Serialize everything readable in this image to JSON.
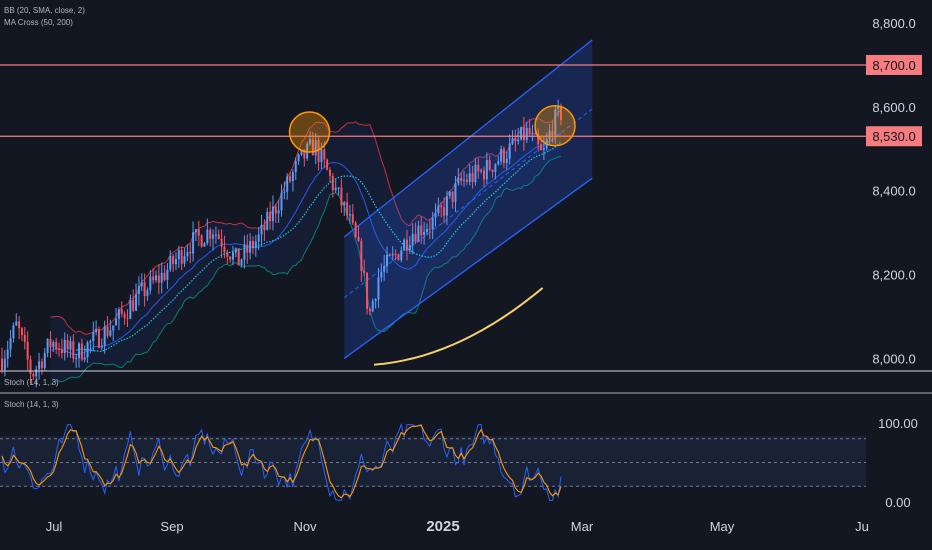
{
  "indicators": {
    "bb_label": "BB (20, SMA, close, 2)",
    "ma_label": "MA Cross (50, 200)",
    "stoch_label_1": "Stoch (14, 1, 3)",
    "stoch_label_2": "Stoch (14, 1, 3)"
  },
  "chart_data": {
    "type": "candlestick",
    "title": "",
    "price_axis": {
      "ticks": [
        "8,800.0",
        "8,600.0",
        "8,400.0",
        "8,200.0",
        "8,000.0"
      ],
      "tick_values": [
        8800,
        8600,
        8400,
        8200,
        8000
      ],
      "range": [
        7970,
        8855
      ]
    },
    "time_axis": {
      "labels": [
        "Jul",
        "Sep",
        "Nov",
        "2025",
        "Mar",
        "May",
        "Ju"
      ],
      "range_days": [
        0,
        350
      ]
    },
    "horizontal_levels": [
      {
        "value": 8700,
        "label": "8,700.0",
        "color": "#f77c80"
      },
      {
        "value": 8530,
        "label": "8,530.0",
        "color": "#f77c80"
      }
    ],
    "ascending_channel": {
      "upper": [
        [
          138,
          8290
        ],
        [
          238,
          8760
        ]
      ],
      "lower": [
        [
          138,
          8000
        ],
        [
          238,
          8430
        ]
      ],
      "mid_color": "#2962ff"
    },
    "highlight_circles": [
      {
        "day": 124,
        "price": 8540
      },
      {
        "day": 223,
        "price": 8555
      }
    ],
    "ma200_color": "#f5d26b",
    "stochastic": {
      "ticks": [
        "100.00",
        "0.00"
      ],
      "tick_values": [
        100,
        0
      ],
      "overbought": 80,
      "oversold": 20,
      "colors": {
        "k": "#2962ff",
        "d": "#ff9800"
      }
    },
    "colors": {
      "up": "#5b9cf6",
      "down": "#f7525f",
      "bb": "#f23645",
      "bb_fill": "#2962ff",
      "ma50": "#26c6da"
    }
  }
}
